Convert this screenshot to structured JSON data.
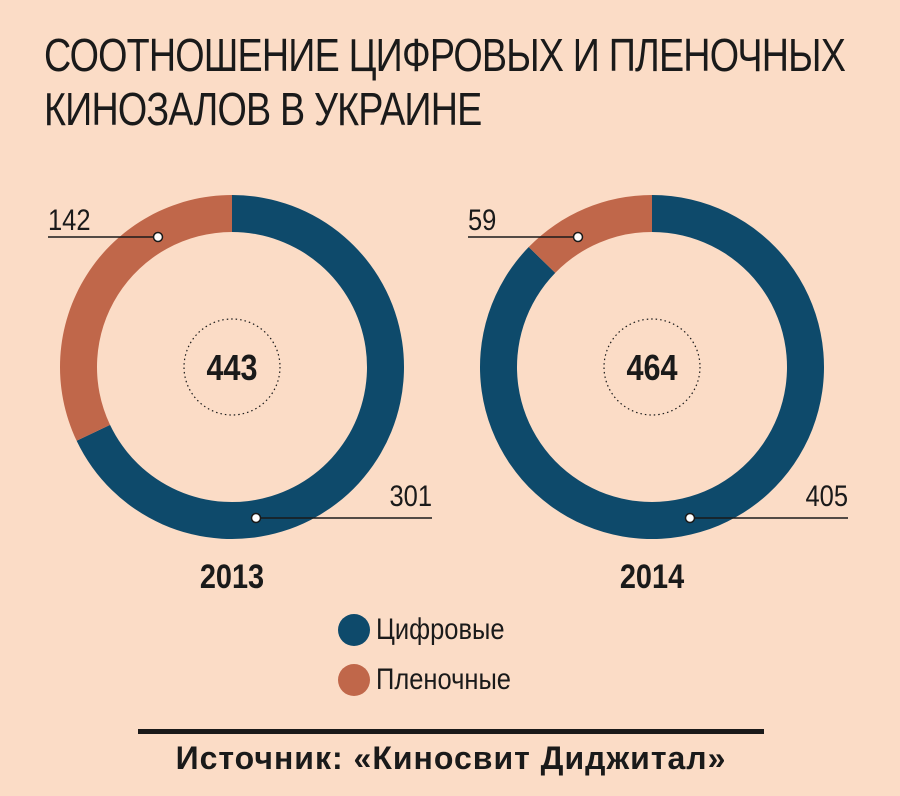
{
  "title": "СООТНОШЕНИЕ ЦИФРОВЫХ И ПЛЕНОЧНЫХ\nКИНОЗАЛОВ В УКРАИНЕ",
  "title_lines": [
    "СООТНОШЕНИЕ ЦИФРОВЫХ И ПЛЕНОЧНЫХ",
    "КИНОЗАЛОВ В УКРАИНЕ"
  ],
  "colors": {
    "digital": "#0e4a6b",
    "film": "#c0674a",
    "background": "#fbdcc6"
  },
  "legend": [
    {
      "label": "Цифровые",
      "color": "#0e4a6b"
    },
    {
      "label": "Пленочные",
      "color": "#c0674a"
    }
  ],
  "source": "Источник: «Киносвит Диджитал»",
  "chart_data": [
    {
      "type": "pie",
      "variant": "donut",
      "year": "2013",
      "total": "443",
      "slices": [
        {
          "name": "Цифровые",
          "value": 301
        },
        {
          "name": "Пленочные",
          "value": 142
        }
      ]
    },
    {
      "type": "pie",
      "variant": "donut",
      "year": "2014",
      "total": "464",
      "slices": [
        {
          "name": "Цифровые",
          "value": 405
        },
        {
          "name": "Пленочные",
          "value": 59
        }
      ]
    }
  ]
}
